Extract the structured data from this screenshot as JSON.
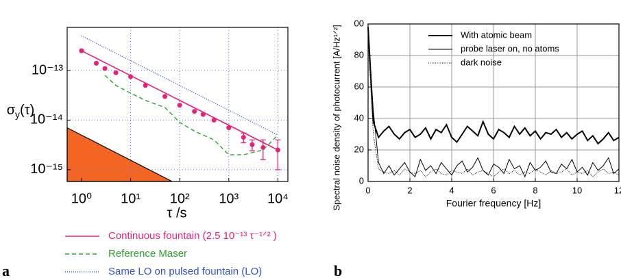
{
  "chart_data": [
    {
      "type": "line",
      "panel_label": "a",
      "xlog": true,
      "ylog": true,
      "grid": true,
      "xlabel": "τ /s",
      "ylabel": {
        "symbol": "σ",
        "sub": "y",
        "arg": "(τ)"
      },
      "xlim": [
        0.51,
        16000
      ],
      "ylim": [
        5.8e-16,
        7.4e-13
      ],
      "xticks": [
        {
          "value": 1,
          "label": "10⁰"
        },
        {
          "value": 10,
          "label": "10¹"
        },
        {
          "value": 100,
          "label": "10²"
        },
        {
          "value": 1000,
          "label": "10³"
        },
        {
          "value": 10000,
          "label": "10⁴"
        }
      ],
      "yticks": [
        {
          "value": 1e-15,
          "label": "10⁻¹⁵"
        },
        {
          "value": 1e-14,
          "label": "10⁻¹⁴"
        },
        {
          "value": 1e-13,
          "label": "10⁻¹³"
        }
      ],
      "shaded_region": {
        "color": "#f26522",
        "x": [
          0.51,
          70
        ],
        "values": [
          7e-15,
          5.8e-16
        ]
      },
      "series": [
        {
          "name": "Continuous fountain (2.5 10⁻¹³ τ⁻¹ᐟ² )",
          "color": "#e8207a",
          "x": [
            1,
            2,
            3,
            5,
            10,
            20,
            50,
            100,
            200,
            300,
            500,
            1000,
            2000,
            3000,
            5000,
            10000
          ],
          "values": [
            2.5e-13,
            1.4e-13,
            1.1e-13,
            9e-14,
            7.5e-14,
            5e-14,
            3e-14,
            2e-14,
            1.5e-14,
            1.3e-14,
            1e-14,
            7e-15,
            4.5e-15,
            3.2e-15,
            2.8e-15,
            2.5e-15
          ],
          "errors": [
            null,
            null,
            null,
            null,
            null,
            null,
            null,
            null,
            null,
            null,
            null,
            null,
            1e-15,
            8e-16,
            1.2e-15,
            1.5e-15
          ],
          "fit": {
            "x": [
              1,
              10000
            ],
            "values": [
              2.5e-13,
              2.5e-15
            ]
          }
        },
        {
          "name": "Reference Maser",
          "color": "#2aa52a",
          "dash": "6,4",
          "x": [
            3,
            5,
            10,
            20,
            50,
            100,
            200,
            500,
            1000,
            2000,
            5000,
            10000
          ],
          "values": [
            8e-14,
            5e-14,
            3.5e-14,
            2.5e-14,
            1.8e-14,
            9e-15,
            6e-15,
            4e-15,
            2e-15,
            2e-15,
            2.5e-15,
            5e-15
          ]
        },
        {
          "name": "Same LO on pulsed fountain (LO)",
          "color": "#3050d0",
          "dash": "1,2",
          "x": [
            1,
            10000
          ],
          "values": [
            5e-13,
            5e-15
          ]
        }
      ]
    },
    {
      "type": "line",
      "panel_label": "b",
      "xlog": false,
      "ylog": false,
      "grid": true,
      "xlabel": "Fourier frequency [Hz]",
      "ylabel": "Spectral noise density of photocurrent [A/Hz¹ᐟ²]",
      "xlim": [
        0,
        12
      ],
      "ylim": [
        0,
        100
      ],
      "xticks": [
        0,
        2,
        4,
        6,
        8,
        10,
        12
      ],
      "yticks": [
        0,
        20,
        40,
        60,
        80,
        {
          "value": 100,
          "label": "00"
        }
      ],
      "series": [
        {
          "name": "With atomic beam",
          "color": "#000000",
          "width": 2,
          "x": [
            0,
            0.25,
            0.5,
            0.75,
            1,
            1.25,
            1.5,
            1.75,
            2,
            2.25,
            2.5,
            2.75,
            3,
            3.25,
            3.5,
            3.75,
            4,
            4.25,
            4.5,
            4.75,
            5,
            5.25,
            5.5,
            5.75,
            6,
            6.25,
            6.5,
            6.75,
            7,
            7.25,
            7.5,
            7.75,
            8,
            8.25,
            8.5,
            8.75,
            9,
            9.25,
            9.5,
            9.75,
            10,
            10.25,
            10.5,
            10.75,
            11,
            11.25,
            11.5,
            11.75,
            12
          ],
          "values": [
            98,
            38,
            28,
            32,
            35,
            30,
            27,
            31,
            33,
            28,
            30,
            34,
            27,
            33,
            31,
            36,
            28,
            25,
            30,
            35,
            32,
            29,
            38,
            30,
            27,
            33,
            31,
            28,
            35,
            30,
            34,
            29,
            32,
            27,
            31,
            30,
            33,
            28,
            31,
            27,
            30,
            32,
            26,
            29,
            24,
            27,
            31,
            26,
            28
          ]
        },
        {
          "name": "probe laser on, no atoms",
          "color": "#000000",
          "width": 1,
          "x": [
            0,
            0.25,
            0.5,
            0.75,
            1,
            1.25,
            1.5,
            1.75,
            2,
            2.25,
            2.5,
            2.75,
            3,
            3.25,
            3.5,
            3.75,
            4,
            4.25,
            4.5,
            4.75,
            5,
            5.25,
            5.5,
            5.75,
            6,
            6.25,
            6.5,
            6.75,
            7,
            7.25,
            7.5,
            7.75,
            8,
            8.25,
            8.5,
            8.75,
            9,
            9.25,
            9.5,
            9.75,
            10,
            10.25,
            10.5,
            10.75,
            11,
            11.25,
            11.5,
            11.75,
            12
          ],
          "values": [
            95,
            45,
            12,
            5,
            10,
            4,
            8,
            12,
            6,
            3,
            14,
            7,
            10,
            5,
            12,
            8,
            4,
            10,
            13,
            6,
            9,
            15,
            7,
            4,
            11,
            9,
            5,
            14,
            8,
            10,
            3,
            12,
            7,
            9,
            13,
            6,
            5,
            11,
            8,
            14,
            6,
            9,
            4,
            12,
            7,
            10,
            15,
            5,
            8
          ]
        },
        {
          "name": "dark noise",
          "color": "#000000",
          "width": 1,
          "dash": "1,1.5",
          "x": [
            0,
            0.25,
            0.5,
            0.75,
            1,
            1.25,
            1.5,
            1.75,
            2,
            2.25,
            2.5,
            2.75,
            3,
            3.25,
            3.5,
            3.75,
            4,
            4.25,
            4.5,
            4.75,
            5,
            5.25,
            5.5,
            5.75,
            6,
            6.25,
            6.5,
            6.75,
            7,
            7.25,
            7.5,
            7.75,
            8,
            8.25,
            8.5,
            8.75,
            9,
            9.25,
            9.5,
            9.75,
            10,
            10.25,
            10.5,
            10.75,
            11,
            11.25,
            11.5,
            11.75,
            12
          ],
          "values": [
            90,
            30,
            8,
            6,
            5,
            7,
            4,
            8,
            6,
            5,
            7,
            3,
            6,
            8,
            5,
            4,
            7,
            6,
            5,
            8,
            4,
            6,
            7,
            5,
            3,
            6,
            8,
            5,
            7,
            4,
            6,
            5,
            8,
            6,
            4,
            7,
            5,
            6,
            8,
            4,
            6,
            5,
            7,
            3,
            6,
            8,
            5,
            6,
            4
          ]
        }
      ]
    }
  ]
}
